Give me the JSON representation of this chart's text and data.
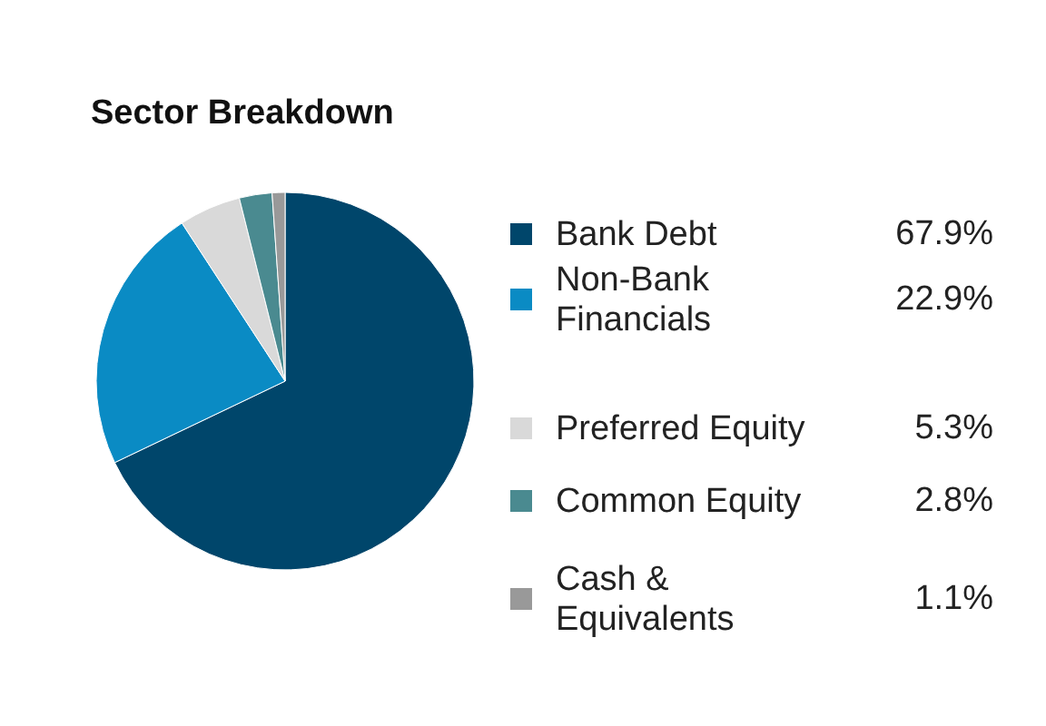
{
  "chart_data": {
    "type": "pie",
    "title": "Sector Breakdown",
    "categories": [
      "Bank Debt",
      "Non-Bank Financials",
      "Preferred Equity",
      "Common Equity",
      "Cash & Equivalents"
    ],
    "values": [
      67.9,
      22.9,
      5.3,
      2.8,
      1.1
    ],
    "colors": [
      "#00466b",
      "#0a8bc4",
      "#d9d9d9",
      "#4a8a90",
      "#999999"
    ],
    "value_labels": [
      "67.9%",
      "22.9%",
      "5.3%",
      "2.8%",
      "1.1%"
    ],
    "legend": "right"
  }
}
